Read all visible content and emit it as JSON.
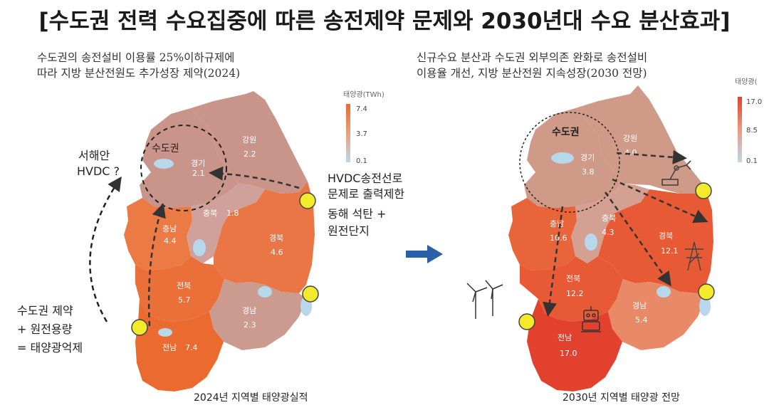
{
  "title": "[수도권 전력 수요집중에 따른 송전제약 문제와 2030년대 수요 분산효과]",
  "left_panel": {
    "note_line1": "수도권의 송전설비 이용률 25%이하규제에",
    "note_line2": "따라 지방 분산전원도 추가성장 제약(2024)",
    "caption": "2024년 지역별 태양광실적",
    "legend": {
      "title": "태양광(TWh)",
      "max": "7.4",
      "mid": "3.7",
      "min": "0.1"
    },
    "capital_label": "수도권",
    "regions": [
      {
        "name": "경기",
        "value": "2.1"
      },
      {
        "name": "강원",
        "value": "2.2"
      },
      {
        "name": "충북",
        "value": "1.8"
      },
      {
        "name": "충남",
        "value": "4.4"
      },
      {
        "name": "경북",
        "value": "4.6"
      },
      {
        "name": "전북",
        "value": "5.7"
      },
      {
        "name": "경남",
        "value": "2.3"
      },
      {
        "name": "전남",
        "value": "7.4"
      }
    ],
    "annotations": {
      "hvdc_west_1": "서해안",
      "hvdc_west_2": "HVDC ?",
      "hvdc_east_1": "HVDC송전선로",
      "hvdc_east_2": "문제로 출력제한",
      "east_plant_1": "동해 석탄 +",
      "east_plant_2": "원전단지",
      "bottom_1": "수도권 제약",
      "bottom_2": "+ 원전용량",
      "bottom_3": "= 태양광억제"
    }
  },
  "right_panel": {
    "note_line1": "신규수요 분산과 수도권 외부의존 완화로 송전설비",
    "note_line2": "이용율 개선, 지방 분산전원 지속성장(2030 전망)",
    "caption": "2030년 지역별 태양광 전망",
    "legend": {
      "title": "태양광(",
      "max": "17.0",
      "mid": "8.5",
      "min": "0.1"
    },
    "capital_label": "수도권",
    "regions": [
      {
        "name": "경기",
        "value": "3.8"
      },
      {
        "name": "강원",
        "value": "4.0"
      },
      {
        "name": "충북",
        "value": "4.3"
      },
      {
        "name": "충남",
        "value": "10.6"
      },
      {
        "name": "경북",
        "value": "12.1"
      },
      {
        "name": "전북",
        "value": "12.2"
      },
      {
        "name": "경남",
        "value": "5.4"
      },
      {
        "name": "전남",
        "value": "17.0"
      }
    ]
  },
  "colors": {
    "low": "#c9948a",
    "mid": "#e8794a",
    "high": "#ea6a30",
    "peak": "#e2412e",
    "water": "#b7d7ea",
    "plant": "#f2ea2a",
    "arrow": "#2b5fa8"
  },
  "icons": [
    "wind-turbine-icon",
    "robot-arm-icon",
    "transmission-tower-icon",
    "robot-icon",
    "arrow-right-icon"
  ]
}
